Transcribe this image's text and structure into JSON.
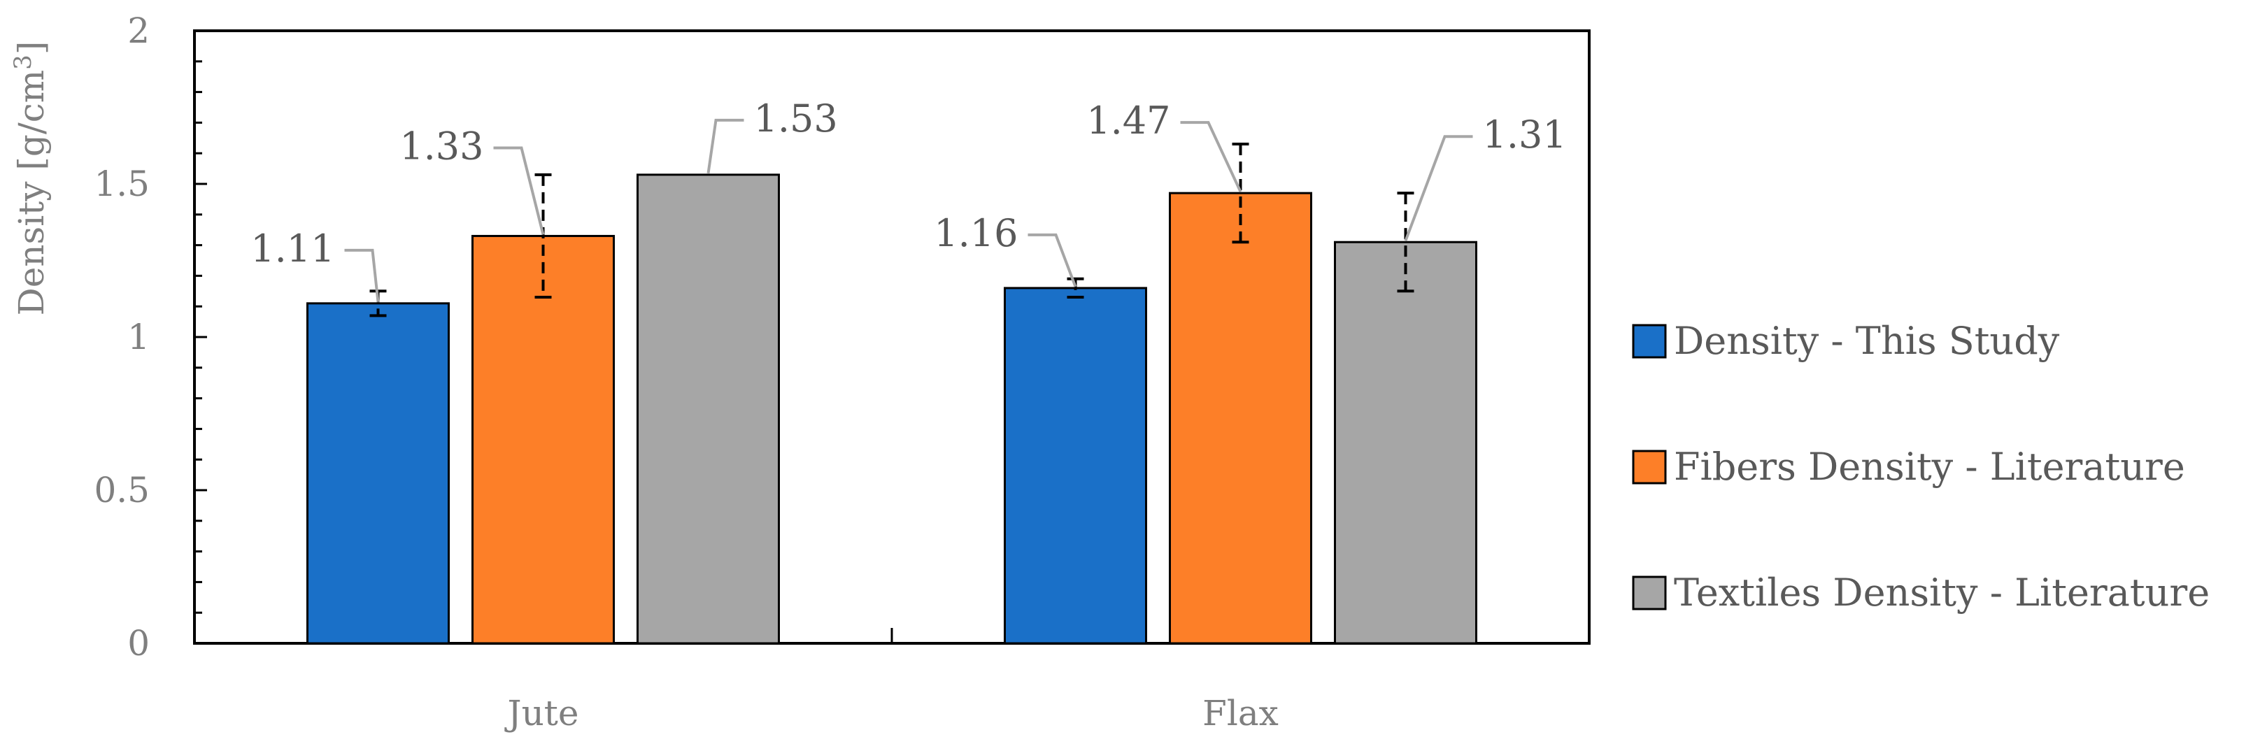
{
  "chart_data": {
    "type": "bar",
    "title": "",
    "xlabel": "",
    "ylabel": "Density [g/cm",
    "ylabel_sup": "3",
    "ylabel_close": "]",
    "categories": [
      "Jute",
      "Flax"
    ],
    "ylim": [
      0,
      2
    ],
    "yticks": [
      "0",
      "0.5",
      "1",
      "1.5",
      "2"
    ],
    "legend_position": "right",
    "grid": false,
    "series": [
      {
        "name": "Density - This Study",
        "color": "#1a70c8",
        "values": [
          1.11,
          1.16
        ],
        "errors": [
          0.04,
          0.03
        ],
        "labels": [
          "1.11",
          "1.16"
        ]
      },
      {
        "name": "Fibers Density - Literature",
        "color": "#fd7f28",
        "values": [
          1.33,
          1.47
        ],
        "errors": [
          0.2,
          0.16
        ],
        "labels": [
          "1.33",
          "1.47"
        ]
      },
      {
        "name": "Textiles Density - Literature",
        "color": "#a6a6a6",
        "values": [
          1.53,
          1.31
        ],
        "errors": [
          0,
          0.16
        ],
        "labels": [
          "1.53",
          "1.31"
        ]
      }
    ]
  }
}
